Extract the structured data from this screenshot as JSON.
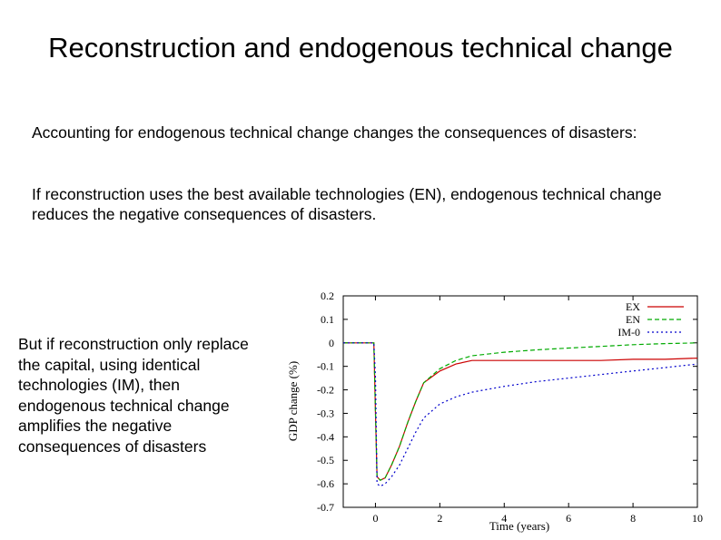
{
  "slide": {
    "title": "Reconstruction and endogenous technical change",
    "paragraph1": "Accounting for endogenous technical change changes the consequences of disasters:",
    "paragraph2": "If reconstruction uses the best available technologies (EN), endogenous technical change reduces the negative consequences of disasters.",
    "paragraph3": "But if reconstruction only replace the capital, using identical technologies (IM), then endogenous technical change amplifies the negative consequences of disasters"
  },
  "chart_data": {
    "type": "line",
    "xlabel": "Time (years)",
    "ylabel": "GDP change (%)",
    "xlim": [
      -1,
      10
    ],
    "ylim": [
      -0.7,
      0.2
    ],
    "xticks": [
      0,
      2,
      4,
      6,
      8,
      10
    ],
    "yticks": [
      0.2,
      0.1,
      0,
      -0.1,
      -0.2,
      -0.3,
      -0.4,
      -0.5,
      -0.6,
      -0.7
    ],
    "legend_position": "top-right",
    "series": [
      {
        "name": "EX",
        "color": "#cc0000",
        "dash": "solid",
        "points": [
          [
            -1,
            0
          ],
          [
            -0.05,
            0
          ],
          [
            0,
            -0.3
          ],
          [
            0.05,
            -0.57
          ],
          [
            0.15,
            -0.585
          ],
          [
            0.3,
            -0.575
          ],
          [
            0.5,
            -0.52
          ],
          [
            0.75,
            -0.44
          ],
          [
            1,
            -0.34
          ],
          [
            1.25,
            -0.25
          ],
          [
            1.5,
            -0.17
          ],
          [
            2,
            -0.12
          ],
          [
            2.5,
            -0.09
          ],
          [
            3,
            -0.075
          ],
          [
            4,
            -0.075
          ],
          [
            5,
            -0.075
          ],
          [
            6,
            -0.075
          ],
          [
            7,
            -0.075
          ],
          [
            8,
            -0.07
          ],
          [
            9,
            -0.07
          ],
          [
            10,
            -0.065
          ]
        ]
      },
      {
        "name": "EN",
        "color": "#00aa00",
        "dash": "dashed",
        "points": [
          [
            -1,
            0
          ],
          [
            -0.05,
            0
          ],
          [
            0,
            -0.3
          ],
          [
            0.05,
            -0.57
          ],
          [
            0.15,
            -0.585
          ],
          [
            0.3,
            -0.575
          ],
          [
            0.5,
            -0.52
          ],
          [
            0.75,
            -0.44
          ],
          [
            1,
            -0.34
          ],
          [
            1.25,
            -0.25
          ],
          [
            1.5,
            -0.17
          ],
          [
            2,
            -0.11
          ],
          [
            2.5,
            -0.075
          ],
          [
            3,
            -0.055
          ],
          [
            4,
            -0.04
          ],
          [
            5,
            -0.03
          ],
          [
            6,
            -0.022
          ],
          [
            7,
            -0.015
          ],
          [
            8,
            -0.008
          ],
          [
            9,
            -0.003
          ],
          [
            10,
            0
          ]
        ]
      },
      {
        "name": "IM-0",
        "color": "#0000cc",
        "dash": "dotted",
        "points": [
          [
            -1,
            0
          ],
          [
            -0.05,
            0
          ],
          [
            0,
            -0.15
          ],
          [
            0.05,
            -0.6
          ],
          [
            0.15,
            -0.61
          ],
          [
            0.3,
            -0.6
          ],
          [
            0.5,
            -0.57
          ],
          [
            0.75,
            -0.52
          ],
          [
            1,
            -0.45
          ],
          [
            1.25,
            -0.38
          ],
          [
            1.5,
            -0.32
          ],
          [
            2,
            -0.26
          ],
          [
            2.5,
            -0.23
          ],
          [
            3,
            -0.21
          ],
          [
            4,
            -0.185
          ],
          [
            5,
            -0.165
          ],
          [
            6,
            -0.15
          ],
          [
            7,
            -0.135
          ],
          [
            8,
            -0.12
          ],
          [
            9,
            -0.105
          ],
          [
            10,
            -0.09
          ]
        ]
      }
    ]
  }
}
